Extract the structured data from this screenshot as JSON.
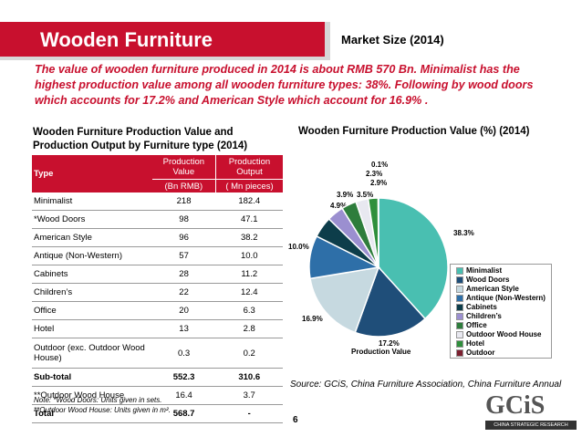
{
  "header": {
    "title": "Wooden Furniture",
    "market": "Market Size (2014)"
  },
  "intro": "The value of wooden furniture produced in 2014 is about RMB 570 Bn. Minimalist has the highest production value among all wooden furniture types: 38%. Following by wood doors which accounts for 17.2% and American Style which account for 16.9% .",
  "table": {
    "title": "Wooden Furniture Production Value and Production Output by Furniture type (2014)",
    "col_type": "Type",
    "col_value": "Production Value",
    "col_output": "Production Output",
    "unit_value": "(Bn RMB)",
    "unit_output": "( Mn pieces)",
    "rows": [
      {
        "type": "Minimalist",
        "value": "218",
        "output": "182.4",
        "bold": false
      },
      {
        "type": "*Wood Doors",
        "value": "98",
        "output": "47.1",
        "bold": false
      },
      {
        "type": "American Style",
        "value": "96",
        "output": "38.2",
        "bold": false
      },
      {
        "type": "Antique (Non-Western)",
        "value": "57",
        "output": "10.0",
        "bold": false
      },
      {
        "type": "Cabinets",
        "value": "28",
        "output": "11.2",
        "bold": false
      },
      {
        "type": "Children’s",
        "value": "22",
        "output": "12.4",
        "bold": false
      },
      {
        "type": "Office",
        "value": "20",
        "output": "6.3",
        "bold": false
      },
      {
        "type": "Hotel",
        "value": "13",
        "output": "2.8",
        "bold": false
      },
      {
        "type": "Outdoor (exc. Outdoor Wood House)",
        "value": "0.3",
        "output": "0.2",
        "bold": false
      },
      {
        "type": "Sub-total",
        "value": "552.3",
        "output": "310.6",
        "bold": true
      },
      {
        "type": "**Outdoor Wood House",
        "value": "16.4",
        "output": "3.7",
        "bold": false
      },
      {
        "type": "Total",
        "value": "568.7",
        "output": "-",
        "bold": true
      }
    ],
    "note1": "Note: *Wood Doors: Units given in sets.",
    "note2": "**Outdoor Wood House: Units given in m².",
    "ths": [
      "",
      "",
      ""
    ]
  },
  "chart_data": {
    "type": "pie",
    "title": "Wooden Furniture Production Value (%) (2014)",
    "xlabel": "Production Value",
    "categories": [
      "Minimalist",
      "Wood Doors",
      "American Style",
      "Antique (Non-Western)",
      "Cabinets",
      "Children’s",
      "Office",
      "Outdoor Wood House",
      "Hotel",
      "Outdoor"
    ],
    "values": [
      38.3,
      17.2,
      16.9,
      10.0,
      4.9,
      3.9,
      3.5,
      2.9,
      2.3,
      0.1
    ],
    "labels": [
      "38.3%",
      "17.2%",
      "16.9%",
      "10.0%",
      "4.9%",
      "3.9%",
      "3.5%",
      "2.9%",
      "2.3%",
      "0.1%"
    ],
    "colors": [
      "#49bfb1",
      "#1f4e79",
      "#c6d9e0",
      "#2e6fa8",
      "#0d3d4a",
      "#9b8fd0",
      "#2e7d3c",
      "#e8e8f0",
      "#2f8f3c",
      "#7b1f2f"
    ],
    "legend_position": "right"
  },
  "footer": {
    "source": "Source: GCiS, China Furniture Association, China Furniture Annual",
    "page": "6",
    "logo_text": "GCiS",
    "logo_tag": "CHINA STRATEGIC RESEARCH"
  }
}
